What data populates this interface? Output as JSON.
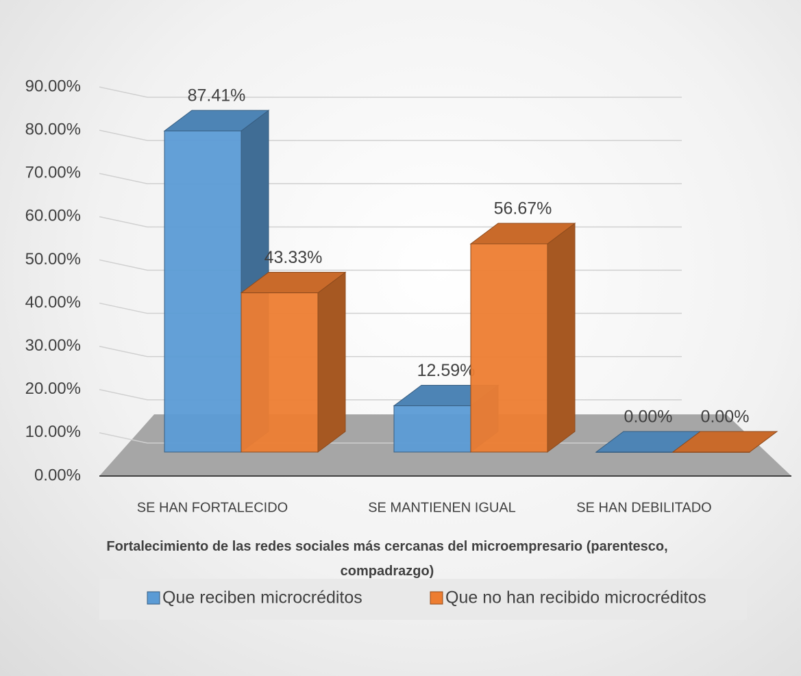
{
  "chart_data": {
    "type": "bar3d",
    "x_label": "Fortalecimiento de las redes sociales más cercanas del microempresario (parentesco, compadrazgo)",
    "categories": [
      "SE HAN FORTALECIDO",
      "SE MANTIENEN IGUAL",
      "SE HAN DEBILITADO"
    ],
    "series": [
      {
        "name": "Que reciben microcréditos",
        "color": "#5b9bd5",
        "values": [
          87.41,
          12.59,
          0
        ],
        "value_labels": [
          "87.41%",
          "12.59%",
          "0.00%"
        ]
      },
      {
        "name": "Que no han recibido microcréditos",
        "color": "#ed7d31",
        "values": [
          43.33,
          56.67,
          0
        ],
        "value_labels": [
          "43.33%",
          "56.67%",
          "0.00%"
        ]
      }
    ],
    "ylim": [
      0,
      90
    ],
    "yticks": [
      {
        "value": 0,
        "label": "0.00%"
      },
      {
        "value": 10,
        "label": "10.00%"
      },
      {
        "value": 20,
        "label": "20.00%"
      },
      {
        "value": 30,
        "label": "30.00%"
      },
      {
        "value": 40,
        "label": "40.00%"
      },
      {
        "value": 50,
        "label": "50.00%"
      },
      {
        "value": 60,
        "label": "60.00%"
      },
      {
        "value": 70,
        "label": "70.00%"
      },
      {
        "value": 80,
        "label": "80.00%"
      },
      {
        "value": 90,
        "label": "90.00%"
      }
    ],
    "grid": true,
    "legend": "bottom"
  }
}
